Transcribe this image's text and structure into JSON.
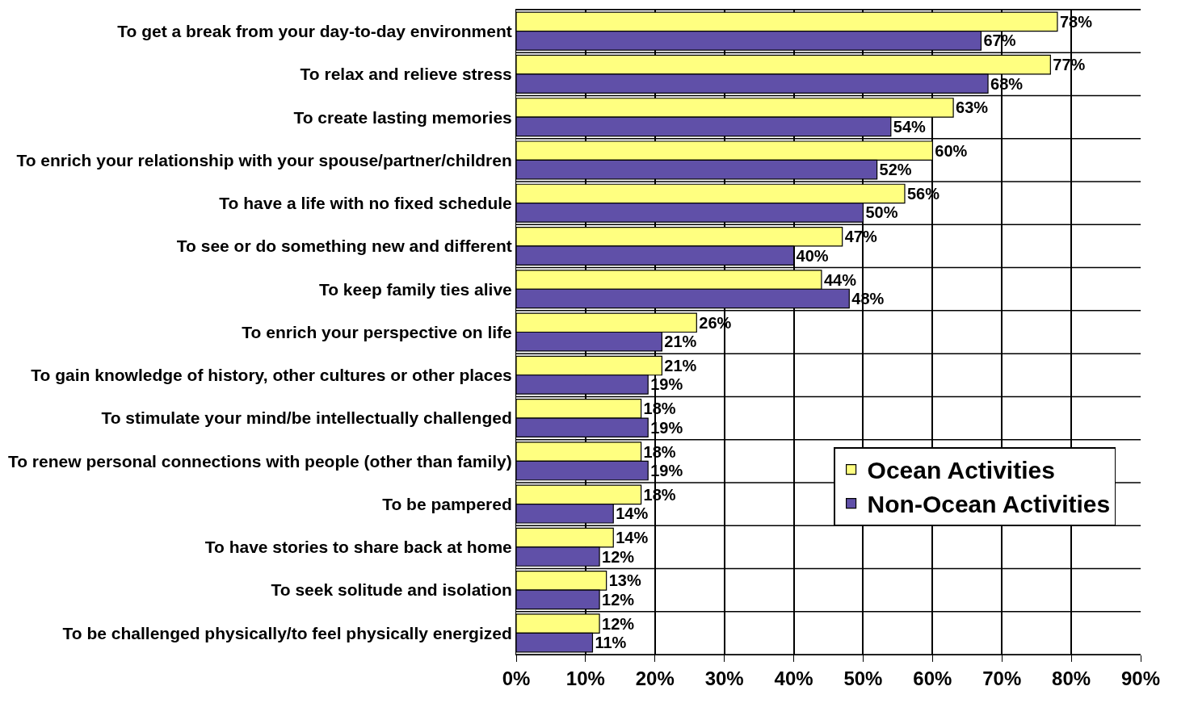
{
  "chart_data": {
    "type": "bar",
    "orientation": "horizontal",
    "categories": [
      "To get a break from your day-to-day environment",
      "To relax and relieve stress",
      "To create lasting memories",
      "To enrich your relationship with your spouse/partner/children",
      "To have a life with no fixed schedule",
      "To see or do something new and different",
      "To keep family ties alive",
      "To enrich your perspective on life",
      "To gain knowledge of history, other cultures or other places",
      "To stimulate your mind/be intellectually challenged",
      "To renew personal connections with people (other than family)",
      "To be pampered",
      "To have stories to share back at home",
      "To seek solitude and isolation",
      "To be challenged physically/to feel physically energized"
    ],
    "series": [
      {
        "name": "Ocean Activities",
        "color": "#ffff80",
        "values": [
          78,
          77,
          63,
          60,
          56,
          47,
          44,
          26,
          21,
          18,
          18,
          18,
          14,
          13,
          12
        ],
        "value_labels": [
          "78%",
          "77%",
          "63%",
          "60%",
          "56%",
          "47%",
          "44%",
          "26%",
          "21%",
          "18%",
          "18%",
          "18%",
          "14%",
          "13%",
          "12%"
        ]
      },
      {
        "name": "Non-Ocean Activities",
        "color": "#6050a8",
        "values": [
          67,
          68,
          54,
          52,
          50,
          40,
          48,
          21,
          19,
          19,
          19,
          14,
          12,
          12,
          11
        ],
        "value_labels": [
          "67%",
          "68%",
          "54%",
          "52%",
          "50%",
          "40%",
          "48%",
          "21%",
          "19%",
          "19%",
          "19%",
          "14%",
          "12%",
          "12%",
          "11%"
        ]
      }
    ],
    "xlim": [
      0,
      90
    ],
    "xticks": [
      {
        "value": 0,
        "label": "0%"
      },
      {
        "value": 10,
        "label": "10%"
      },
      {
        "value": 20,
        "label": "20%"
      },
      {
        "value": 30,
        "label": "30%"
      },
      {
        "value": 40,
        "label": "40%"
      },
      {
        "value": 50,
        "label": "50%"
      },
      {
        "value": 60,
        "label": "60%"
      },
      {
        "value": 70,
        "label": "70%"
      },
      {
        "value": 80,
        "label": "80%"
      },
      {
        "value": 90,
        "label": "90%"
      }
    ],
    "grid": true,
    "legend": "bottom right"
  }
}
